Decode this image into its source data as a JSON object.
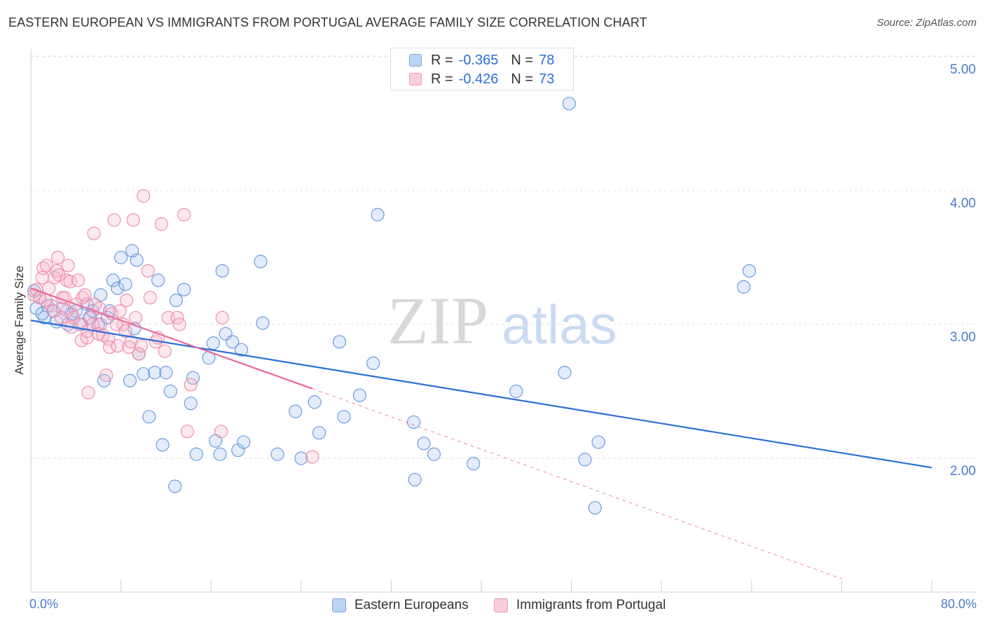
{
  "title": "EASTERN EUROPEAN VS IMMIGRANTS FROM PORTUGAL AVERAGE FAMILY SIZE CORRELATION CHART",
  "source": "Source: ZipAtlas.com",
  "watermark": {
    "zip": "ZIP",
    "atlas": "atlas"
  },
  "legend": {
    "r_label": "R =",
    "n_label": "N =",
    "rows": [
      {
        "r": "-0.365",
        "n": "78",
        "color": "#a9c5ee"
      },
      {
        "r": "-0.426",
        "n": "73",
        "color": "#f6b7cb"
      }
    ]
  },
  "chart_data": {
    "type": "scatter",
    "title": "EASTERN EUROPEAN VS IMMIGRANTS FROM PORTUGAL AVERAGE FAMILY SIZE CORRELATION CHART",
    "xlabel": "",
    "ylabel": "Average Family Size",
    "xlim": [
      0,
      80
    ],
    "ylim": [
      1.0,
      5.0
    ],
    "x_tick_labels": [
      "0.0%",
      "80.0%"
    ],
    "y_ticks": [
      2.0,
      3.0,
      4.0,
      5.0
    ],
    "y_tick_labels": [
      "2.00",
      "3.00",
      "4.00",
      "5.00"
    ],
    "grid": true,
    "legend_position": "top-center",
    "colors": {
      "eastern": "#5b93dc",
      "portugal": "#ee85a6",
      "eastern_line": "#2b6fd6",
      "portugal_line": "#e8699a",
      "tick_text": "#4a7cc9"
    },
    "series": [
      {
        "name": "Eastern Europeans",
        "r": -0.365,
        "n": 78,
        "trend": {
          "x": [
            0,
            80
          ],
          "y": [
            3.03,
            1.93
          ]
        },
        "points": [
          [
            0.3,
            3.25
          ],
          [
            0.5,
            3.12
          ],
          [
            0.8,
            3.2
          ],
          [
            1.2,
            3.05
          ],
          [
            1.5,
            3.14
          ],
          [
            2,
            3.1
          ],
          [
            2.3,
            3.02
          ],
          [
            2.8,
            3.12
          ],
          [
            3.3,
            3.0
          ],
          [
            3.6,
            3.08
          ],
          [
            4.5,
            3.0
          ],
          [
            5,
            3.15
          ],
          [
            5.2,
            3.05
          ],
          [
            5.5,
            3.1
          ],
          [
            6,
            3.0
          ],
          [
            6.2,
            3.22
          ],
          [
            6.8,
            3.05
          ],
          [
            6.5,
            2.58
          ],
          [
            7,
            3.1
          ],
          [
            7.3,
            3.33
          ],
          [
            7.7,
            3.27
          ],
          [
            8,
            3.5
          ],
          [
            8.4,
            3.3
          ],
          [
            8.8,
            2.58
          ],
          [
            9.2,
            2.97
          ],
          [
            9.6,
            2.78
          ],
          [
            9.4,
            3.48
          ],
          [
            10,
            2.63
          ],
          [
            10.5,
            2.31
          ],
          [
            11,
            2.64
          ],
          [
            11.3,
            3.33
          ],
          [
            11.7,
            2.1
          ],
          [
            12,
            2.64
          ],
          [
            12.4,
            2.5
          ],
          [
            12.9,
            3.18
          ],
          [
            12.8,
            1.79
          ],
          [
            13.6,
            3.26
          ],
          [
            14.2,
            2.41
          ],
          [
            14.4,
            2.6
          ],
          [
            14.7,
            2.03
          ],
          [
            15.8,
            2.75
          ],
          [
            16.2,
            2.86
          ],
          [
            16.4,
            2.13
          ],
          [
            16.8,
            2.03
          ],
          [
            17,
            3.4
          ],
          [
            17.3,
            2.93
          ],
          [
            17.9,
            2.87
          ],
          [
            18.4,
            2.06
          ],
          [
            18.7,
            2.81
          ],
          [
            18.9,
            2.12
          ],
          [
            20.4,
            3.47
          ],
          [
            20.6,
            3.01
          ],
          [
            21.9,
            2.03
          ],
          [
            23.5,
            2.35
          ],
          [
            25.2,
            2.42
          ],
          [
            25.6,
            2.19
          ],
          [
            27.4,
            2.87
          ],
          [
            27.8,
            2.31
          ],
          [
            29.2,
            2.47
          ],
          [
            30.4,
            2.71
          ],
          [
            30.8,
            3.82
          ],
          [
            34,
            2.27
          ],
          [
            34.1,
            1.84
          ],
          [
            34.9,
            2.11
          ],
          [
            35.8,
            2.03
          ],
          [
            39.3,
            1.96
          ],
          [
            43.1,
            2.5
          ],
          [
            47.4,
            2.64
          ],
          [
            47.8,
            4.65
          ],
          [
            49.2,
            1.99
          ],
          [
            50.1,
            1.63
          ],
          [
            50.4,
            2.12
          ],
          [
            63.3,
            3.28
          ],
          [
            63.8,
            3.4
          ],
          [
            1.0,
            3.08
          ],
          [
            4.0,
            3.1
          ],
          [
            9.0,
            3.55
          ],
          [
            24.0,
            2.0
          ]
        ]
      },
      {
        "name": "Immigrants from Portugal",
        "r": -0.426,
        "n": 73,
        "trend": {
          "x": [
            0,
            25
          ],
          "y": [
            3.27,
            2.52
          ]
        },
        "trend_dashed": {
          "x": [
            25,
            72
          ],
          "y": [
            2.52,
            1.1
          ]
        },
        "points": [
          [
            0.3,
            3.22
          ],
          [
            0.5,
            3.26
          ],
          [
            0.8,
            3.2
          ],
          [
            1,
            3.35
          ],
          [
            1.1,
            3.42
          ],
          [
            1.4,
            3.44
          ],
          [
            1.6,
            3.27
          ],
          [
            1.8,
            3.14
          ],
          [
            2,
            3.1
          ],
          [
            2.1,
            3.35
          ],
          [
            2.3,
            3.4
          ],
          [
            2.5,
            3.37
          ],
          [
            2.4,
            3.5
          ],
          [
            2.8,
            3.2
          ],
          [
            3,
            3.2
          ],
          [
            3.2,
            3.33
          ],
          [
            3.2,
            3.1
          ],
          [
            3.3,
            3.44
          ],
          [
            3.5,
            3.32
          ],
          [
            3.8,
            3.05
          ],
          [
            4,
            3.15
          ],
          [
            4.3,
            3.0
          ],
          [
            4.5,
            2.88
          ],
          [
            4.2,
            3.33
          ],
          [
            4.6,
            3.2
          ],
          [
            5,
            2.95
          ],
          [
            5,
            2.9
          ],
          [
            5.1,
            2.49
          ],
          [
            5.3,
            3.05
          ],
          [
            5.5,
            3.0
          ],
          [
            5.7,
            3.15
          ],
          [
            5.6,
            3.68
          ],
          [
            6,
            2.93
          ],
          [
            6.2,
            3.0
          ],
          [
            6.4,
            2.92
          ],
          [
            6.7,
            2.62
          ],
          [
            6.9,
            2.89
          ],
          [
            7,
            2.83
          ],
          [
            7.2,
            3.08
          ],
          [
            7.4,
            3.78
          ],
          [
            7.7,
            2.84
          ],
          [
            7.9,
            3.1
          ],
          [
            8.2,
            3.0
          ],
          [
            8.5,
            3.18
          ],
          [
            8.7,
            2.83
          ],
          [
            8.9,
            2.87
          ],
          [
            9.1,
            3.78
          ],
          [
            9.3,
            3.05
          ],
          [
            9.6,
            2.78
          ],
          [
            10,
            3.96
          ],
          [
            10.4,
            3.4
          ],
          [
            10.6,
            3.2
          ],
          [
            11.1,
            2.87
          ],
          [
            11.6,
            3.75
          ],
          [
            11.9,
            2.8
          ],
          [
            12.2,
            3.05
          ],
          [
            13,
            3.05
          ],
          [
            13.6,
            3.82
          ],
          [
            13.9,
            2.2
          ],
          [
            14.2,
            2.55
          ],
          [
            16.9,
            2.2
          ],
          [
            17,
            3.05
          ],
          [
            25,
            2.01
          ],
          [
            1.3,
            3.18
          ],
          [
            2.7,
            3.05
          ],
          [
            3.6,
            2.98
          ],
          [
            4.8,
            3.22
          ],
          [
            6.1,
            3.12
          ],
          [
            7.6,
            3.0
          ],
          [
            8.4,
            2.95
          ],
          [
            9.8,
            2.84
          ],
          [
            11.3,
            2.9
          ],
          [
            13.2,
            3.0
          ]
        ]
      }
    ]
  }
}
